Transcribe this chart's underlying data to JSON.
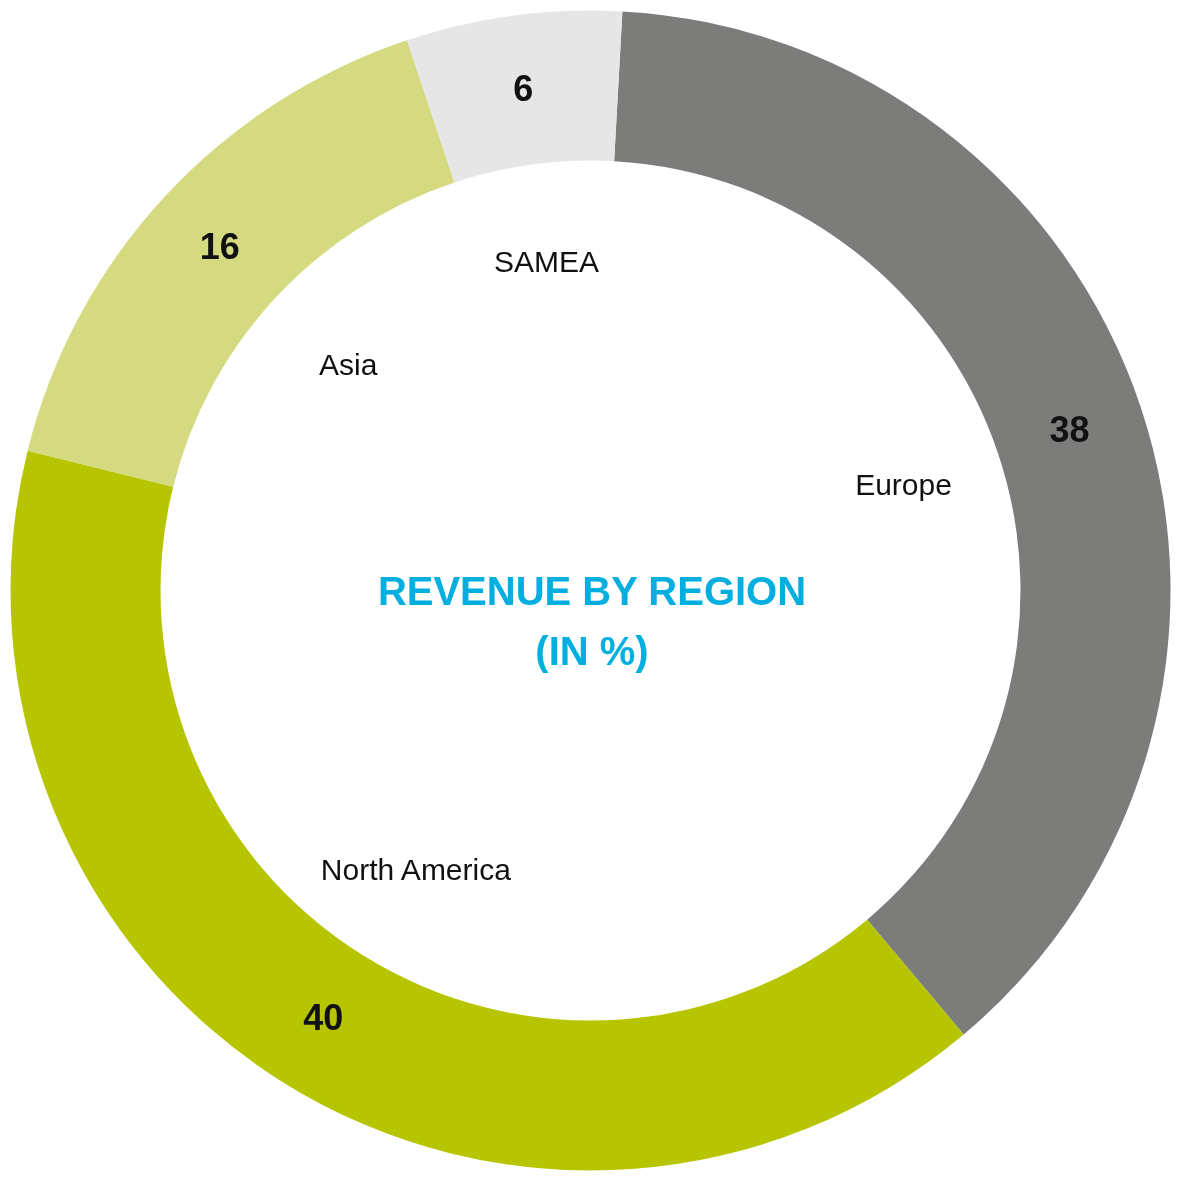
{
  "chart_data": {
    "type": "donut",
    "title": "REVENUE BY REGION (IN %)",
    "categories": [
      "Europe",
      "North America",
      "Asia",
      "SAMEA"
    ],
    "values": [
      38,
      40,
      16,
      6
    ],
    "colors": [
      "#7c7c7a",
      "#b7c400",
      "#d5da80",
      "#e6e6e6"
    ],
    "data_labels": true
  }
}
